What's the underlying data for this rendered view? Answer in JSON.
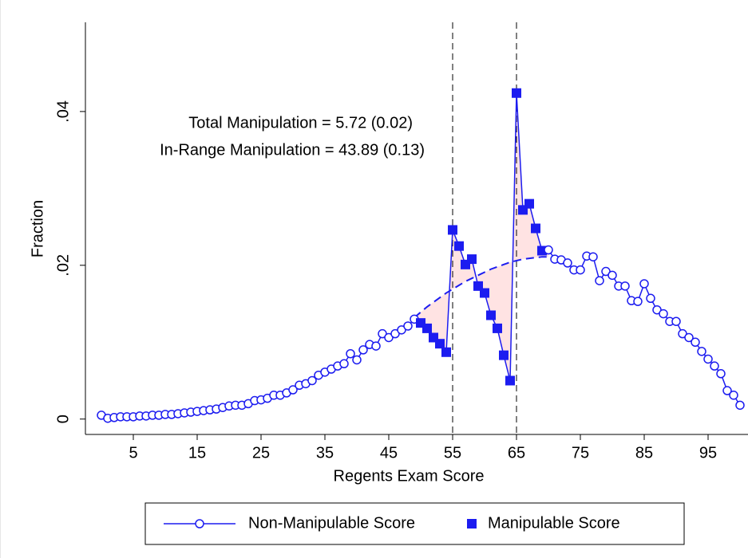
{
  "chart_data": {
    "type": "line",
    "xlabel": "Regents Exam Score",
    "ylabel": "Fraction",
    "annotations": [
      "Total Manipulation = 5.72 (0.02)",
      "In-Range Manipulation = 43.89 (0.13)"
    ],
    "x": [
      0,
      1,
      2,
      3,
      4,
      5,
      6,
      7,
      8,
      9,
      10,
      11,
      12,
      13,
      14,
      15,
      16,
      17,
      18,
      19,
      20,
      21,
      22,
      23,
      24,
      25,
      26,
      27,
      28,
      29,
      30,
      31,
      32,
      33,
      34,
      35,
      36,
      37,
      38,
      39,
      40,
      41,
      42,
      43,
      44,
      45,
      46,
      47,
      48,
      49,
      50,
      51,
      52,
      53,
      54,
      55,
      56,
      57,
      58,
      59,
      60,
      61,
      62,
      63,
      64,
      65,
      66,
      67,
      68,
      69,
      70,
      71,
      72,
      73,
      74,
      75,
      76,
      77,
      78,
      79,
      80,
      81,
      82,
      83,
      84,
      85,
      86,
      87,
      88,
      89,
      90,
      91,
      92,
      93,
      94,
      95,
      96,
      97,
      98,
      99,
      100
    ],
    "series": [
      {
        "name": "Non-Manipulable Score",
        "color": "#1c1cf0",
        "marker": "circle",
        "values": [
          0.0005,
          0.0001,
          0.0002,
          0.0003,
          0.0003,
          0.0003,
          0.0004,
          0.0004,
          0.0005,
          0.0005,
          0.0006,
          0.0006,
          0.0007,
          0.0008,
          0.0009,
          0.001,
          0.0011,
          0.0012,
          0.0013,
          0.0015,
          0.0017,
          0.0018,
          0.0018,
          0.002,
          0.0024,
          0.0025,
          0.0027,
          0.0031,
          0.0031,
          0.0034,
          0.0038,
          0.0044,
          0.0046,
          0.005,
          0.0057,
          0.0061,
          0.0065,
          0.0069,
          0.0072,
          0.0085,
          0.0077,
          0.009,
          0.0097,
          0.0095,
          0.0111,
          0.0106,
          0.0111,
          0.0116,
          0.0121,
          0.013,
          null,
          null,
          null,
          null,
          null,
          null,
          null,
          null,
          null,
          null,
          null,
          null,
          null,
          null,
          null,
          null,
          null,
          null,
          null,
          null,
          0.022,
          0.0208,
          0.0207,
          0.0203,
          0.0194,
          0.0194,
          0.0212,
          0.0211,
          0.018,
          0.0192,
          0.0187,
          0.0173,
          0.0173,
          0.0154,
          0.0153,
          0.0176,
          0.0157,
          0.0142,
          0.0137,
          0.0127,
          0.0127,
          0.0111,
          0.0106,
          0.01,
          0.0088,
          0.0078,
          0.0069,
          0.0059,
          0.0037,
          0.0031,
          0.0018
        ]
      },
      {
        "name": "Manipulable Score",
        "color": "#1c1cf0",
        "marker": "square",
        "values": [
          null,
          null,
          null,
          null,
          null,
          null,
          null,
          null,
          null,
          null,
          null,
          null,
          null,
          null,
          null,
          null,
          null,
          null,
          null,
          null,
          null,
          null,
          null,
          null,
          null,
          null,
          null,
          null,
          null,
          null,
          null,
          null,
          null,
          null,
          null,
          null,
          null,
          null,
          null,
          null,
          null,
          null,
          null,
          null,
          null,
          null,
          null,
          null,
          null,
          null,
          0.0125,
          0.0118,
          0.0106,
          0.0098,
          0.0087,
          0.0246,
          0.0225,
          0.0201,
          0.0208,
          0.0173,
          0.0164,
          0.0135,
          0.0118,
          0.0083,
          0.005,
          0.0424,
          0.0272,
          0.028,
          0.0248,
          0.0219,
          null,
          null,
          null,
          null,
          null,
          null,
          null,
          null,
          null,
          null,
          null,
          null,
          null,
          null,
          null,
          null,
          null,
          null,
          null,
          null,
          null,
          null,
          null,
          null,
          null,
          null,
          null,
          null,
          null,
          null,
          null
        ]
      }
    ],
    "counterfactual": {
      "color": "#1c1cf0",
      "fill": "#ffe3e3",
      "x": [
        49,
        50,
        51,
        52,
        53,
        54,
        55,
        56,
        57,
        58,
        59,
        60,
        61,
        62,
        63,
        64,
        65,
        66,
        67,
        68,
        69,
        70
      ],
      "values": [
        0.0132,
        0.0139,
        0.0146,
        0.0152,
        0.0158,
        0.0164,
        0.0169,
        0.0174,
        0.0179,
        0.0183,
        0.0187,
        0.0191,
        0.0195,
        0.0198,
        0.0201,
        0.0204,
        0.0206,
        0.0208,
        0.0209,
        0.021,
        0.0211,
        0.0211
      ]
    },
    "vlines": [
      55,
      65
    ],
    "xlim": [
      -2.5,
      101.25
    ],
    "ylim": [
      -0.002,
      0.0516
    ],
    "xticks": [
      5,
      15,
      25,
      35,
      45,
      55,
      65,
      75,
      85,
      95
    ],
    "yticks": [
      {
        "value": 0,
        "label": "0"
      },
      {
        "value": 0.02,
        "label": ".02"
      },
      {
        "value": 0.04,
        "label": ".04"
      }
    ]
  }
}
